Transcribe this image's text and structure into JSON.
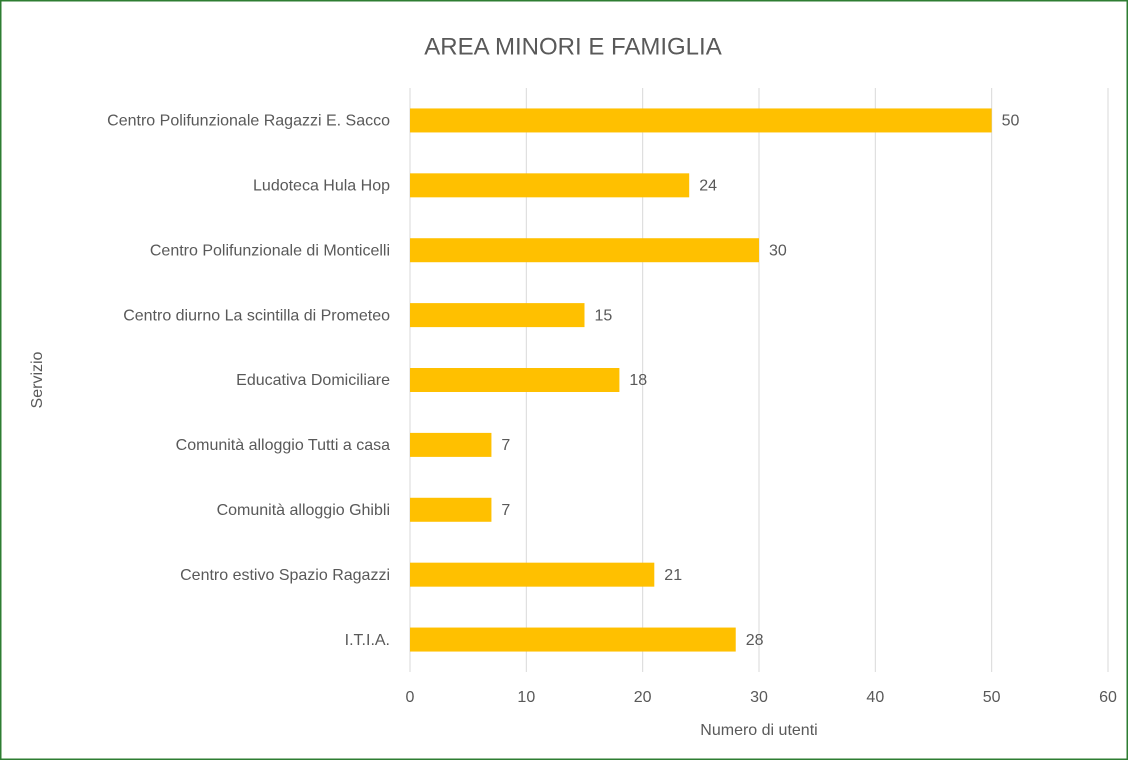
{
  "chart_data": {
    "type": "bar",
    "orientation": "horizontal",
    "title": "AREA MINORI E FAMIGLIA",
    "x_label": "Numero di utenti",
    "y_label": "Servizio",
    "categories": [
      "Centro Polifunzionale Ragazzi E. Sacco",
      "Ludoteca Hula Hop",
      "Centro Polifunzionale di Monticelli",
      "Centro diurno La scintilla di Prometeo",
      "Educativa Domiciliare",
      "Comunità alloggio Tutti a casa",
      "Comunità alloggio Ghibli",
      "Centro estivo Spazio Ragazzi",
      "I.T.I.A."
    ],
    "values": [
      50,
      24,
      30,
      15,
      18,
      7,
      7,
      21,
      28
    ],
    "color": "#ffc000",
    "xlim": [
      0,
      60
    ],
    "xticks": [
      0,
      10,
      20,
      30,
      40,
      50,
      60
    ],
    "grid": true
  }
}
